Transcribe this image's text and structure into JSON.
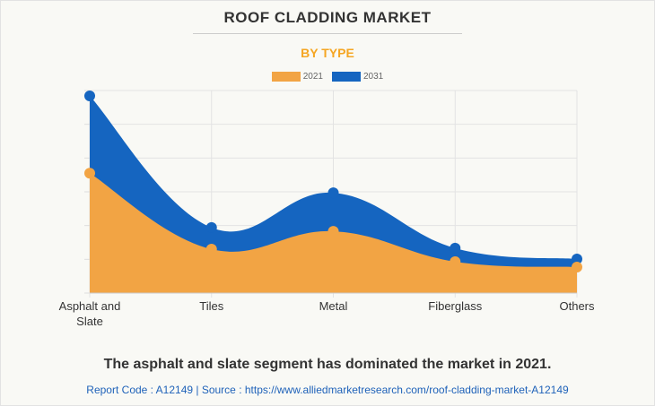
{
  "header": {
    "title": "ROOF CLADDING MARKET",
    "subtitle": "BY TYPE"
  },
  "chart_data": {
    "type": "area",
    "title": "ROOF CLADDING MARKET",
    "subtitle": "BY TYPE",
    "categories": [
      "Asphalt and Slate",
      "Tiles",
      "Metal",
      "Fiberglass",
      "Others"
    ],
    "category_lines": [
      [
        "Asphalt and",
        "Slate"
      ],
      [
        "Tiles"
      ],
      [
        "Metal"
      ],
      [
        "Fiberglass"
      ],
      [
        "Others"
      ]
    ],
    "series": [
      {
        "name": "2021",
        "color": "#f2a444",
        "values": [
          3.55,
          1.3,
          1.83,
          0.93,
          0.77
        ]
      },
      {
        "name": "2031",
        "color": "#1565c0",
        "values": [
          5.84,
          1.94,
          2.97,
          1.33,
          1.01
        ]
      }
    ],
    "ylim": [
      0,
      6
    ],
    "y_unit": "relative (no y-axis labels shown)",
    "grid": true,
    "legend": "top-center"
  },
  "footer": {
    "caption": "The asphalt and slate segment has dominated the market in 2021.",
    "source": "Report Code : A12149  |  Source : https://www.alliedmarketresearch.com/roof-cladding-market-A12149"
  }
}
